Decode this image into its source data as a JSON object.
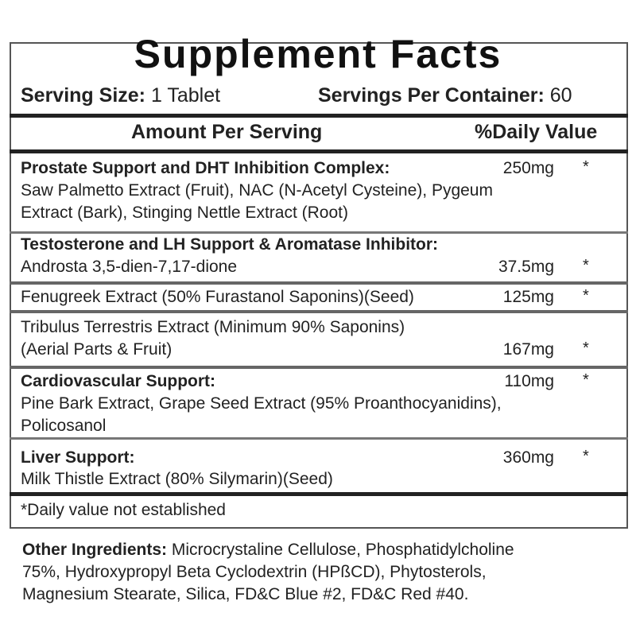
{
  "title": "Supplement Facts",
  "serving_size": {
    "label": "Serving Size:",
    "value": "1 Tablet"
  },
  "servings_per_container": {
    "label": "Servings Per Container:",
    "value": "60"
  },
  "header": {
    "amount": "Amount Per Serving",
    "daily_value": "%Daily Value"
  },
  "rows": [
    {
      "name": "Prostate Support and DHT Inhibition Complex:",
      "amount": "250mg",
      "dv": "*",
      "lines": [
        "Saw Palmetto Extract (Fruit), NAC (N-Acetyl Cysteine), Pygeum",
        "Extract (Bark), Stinging Nettle Extract (Root)"
      ]
    },
    {
      "name": "Testosterone and LH Support & Aromatase Inhibitor:",
      "lines": [
        "Androsta 3,5-dien-7,17-dione"
      ],
      "amount": "37.5mg",
      "dv": "*"
    },
    {
      "lines": [
        "Fenugreek Extract (50% Furastanol Saponins)(Seed)"
      ],
      "amount": "125mg",
      "dv": "*"
    },
    {
      "lines": [
        "Tribulus Terrestris Extract (Minimum 90% Saponins)",
        "(Aerial Parts & Fruit)"
      ],
      "amount": "167mg",
      "dv": "*"
    },
    {
      "name": "Cardiovascular Support:",
      "amount": "110mg",
      "dv": "*",
      "lines": [
        "Pine Bark Extract, Grape Seed Extract (95% Proanthocyanidins),",
        "Policosanol"
      ]
    },
    {
      "name": "Liver Support:",
      "amount": "360mg",
      "dv": "*",
      "lines": [
        "Milk Thistle Extract (80% Silymarin)(Seed)"
      ]
    }
  ],
  "footnote": "*Daily value not established",
  "other_ingredients": {
    "label": "Other Ingredients:",
    "lines": [
      "Microcrystaline Cellulose, Phosphatidylcholine",
      "75%, Hydroxypropyl  Beta Cyclodextrin (HPßCD), Phytosterols,",
      "Magnesium Stearate, Silica, FD&C Blue #2, FD&C Red #40."
    ]
  }
}
